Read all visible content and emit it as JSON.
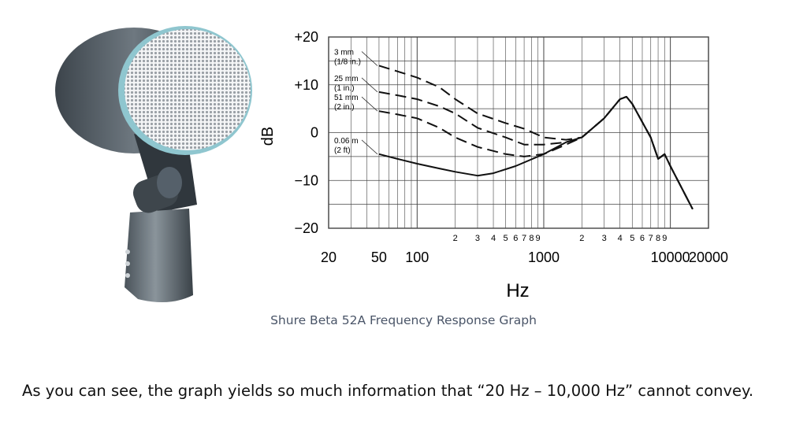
{
  "chart_data": {
    "type": "line",
    "x_scale": "log",
    "xlim": [
      20,
      20000
    ],
    "ylim": [
      -20,
      20
    ],
    "ylabel": "dB",
    "xlabel": "Hz",
    "y_ticks": [
      "+20",
      "+10",
      "0",
      "−10",
      "−20"
    ],
    "x_major_ticks": [
      "20",
      "50",
      "100",
      "1000",
      "10000",
      "20000"
    ],
    "x_minor_ticks": [
      "2",
      "3",
      "4",
      "5",
      "6",
      "7",
      "8",
      "9"
    ],
    "grid": true,
    "series": [
      {
        "name": "3 mm (1/8 in.)",
        "label_lines": [
          "3 mm",
          "(1/8 in.)"
        ],
        "style": "dashed",
        "points": [
          [
            50,
            14
          ],
          [
            70,
            12.8
          ],
          [
            100,
            11.5
          ],
          [
            150,
            9.5
          ],
          [
            200,
            7
          ],
          [
            300,
            4
          ],
          [
            500,
            2
          ],
          [
            700,
            0.8
          ],
          [
            1000,
            -1
          ],
          [
            1500,
            -1.5
          ],
          [
            2000,
            -1
          ],
          [
            3000,
            3
          ],
          [
            4000,
            7
          ],
          [
            4500,
            7.5
          ],
          [
            5000,
            6
          ],
          [
            7000,
            -1
          ],
          [
            8000,
            -5.5
          ],
          [
            9000,
            -4.5
          ],
          [
            10000,
            -7
          ],
          [
            15000,
            -16
          ]
        ]
      },
      {
        "name": "25 mm (1 in.)",
        "label_lines": [
          "25 mm",
          "(1 in.)"
        ],
        "style": "dashed",
        "points": [
          [
            50,
            8.5
          ],
          [
            70,
            7.8
          ],
          [
            100,
            7
          ],
          [
            150,
            5.5
          ],
          [
            200,
            4
          ],
          [
            300,
            1
          ],
          [
            500,
            -1
          ],
          [
            700,
            -2.5
          ],
          [
            1000,
            -2.5
          ],
          [
            1500,
            -2
          ],
          [
            2000,
            -1
          ],
          [
            3000,
            3
          ],
          [
            4000,
            7
          ],
          [
            4500,
            7.5
          ],
          [
            5000,
            6
          ],
          [
            7000,
            -1
          ],
          [
            8000,
            -5.5
          ],
          [
            9000,
            -4.5
          ],
          [
            10000,
            -7
          ],
          [
            15000,
            -16
          ]
        ]
      },
      {
        "name": "51 mm (2 in.)",
        "label_lines": [
          "51 mm",
          "(2 in.)"
        ],
        "style": "dashed",
        "points": [
          [
            50,
            4.5
          ],
          [
            70,
            3.8
          ],
          [
            100,
            3
          ],
          [
            150,
            1
          ],
          [
            200,
            -1
          ],
          [
            300,
            -3
          ],
          [
            500,
            -4.5
          ],
          [
            700,
            -5
          ],
          [
            1000,
            -4.5
          ],
          [
            1500,
            -2.5
          ],
          [
            2000,
            -1
          ],
          [
            3000,
            3
          ],
          [
            4000,
            7
          ],
          [
            4500,
            7.5
          ],
          [
            5000,
            6
          ],
          [
            7000,
            -1
          ],
          [
            8000,
            -5.5
          ],
          [
            9000,
            -4.5
          ],
          [
            10000,
            -7
          ],
          [
            15000,
            -16
          ]
        ]
      },
      {
        "name": "0.06 m (2 ft)",
        "label_lines": [
          "0.06 m",
          "(2 ft)"
        ],
        "style": "solid",
        "points": [
          [
            50,
            -4.5
          ],
          [
            70,
            -5.5
          ],
          [
            100,
            -6.5
          ],
          [
            150,
            -7.5
          ],
          [
            200,
            -8.2
          ],
          [
            300,
            -9
          ],
          [
            400,
            -8.5
          ],
          [
            600,
            -7
          ],
          [
            1000,
            -4.5
          ],
          [
            1500,
            -2
          ],
          [
            2000,
            -1
          ],
          [
            3000,
            3
          ],
          [
            4000,
            7
          ],
          [
            4500,
            7.5
          ],
          [
            5000,
            6
          ],
          [
            7000,
            -1
          ],
          [
            8000,
            -5.5
          ],
          [
            9000,
            -4.5
          ],
          [
            10000,
            -7
          ],
          [
            15000,
            -16
          ]
        ]
      }
    ]
  },
  "caption": "Shure Beta 52A Frequency Response Graph",
  "body_text": "As you can see, the graph yields so much information that “20 Hz – 10,000 Hz” cannot convey."
}
